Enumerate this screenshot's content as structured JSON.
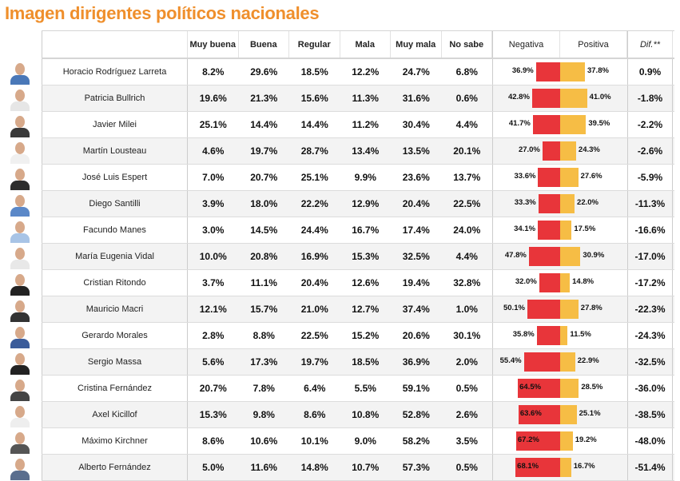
{
  "title": "Imagen dirigentes políticos nacionales",
  "columns": [
    "Muy buena",
    "Buena",
    "Regular",
    "Mala",
    "Muy mala",
    "No sabe",
    "Negativa",
    "Positiva",
    "Dif.**"
  ],
  "colors": {
    "negative": "#e8353a",
    "positive": "#f6bd45",
    "title": "#ef8f2c"
  },
  "rows": [
    {
      "name": "Horacio Rodríguez Larreta",
      "values": [
        "8.2%",
        "29.6%",
        "18.5%",
        "12.2%",
        "24.7%",
        "6.8%"
      ],
      "negativa": "36.9%",
      "positiva": "37.8%",
      "dif": "0.9%"
    },
    {
      "name": "Patricia Bullrich",
      "values": [
        "19.6%",
        "21.3%",
        "15.6%",
        "11.3%",
        "31.6%",
        "0.6%"
      ],
      "negativa": "42.8%",
      "positiva": "41.0%",
      "dif": "-1.8%"
    },
    {
      "name": "Javier Milei",
      "values": [
        "25.1%",
        "14.4%",
        "14.4%",
        "11.2%",
        "30.4%",
        "4.4%"
      ],
      "negativa": "41.7%",
      "positiva": "39.5%",
      "dif": "-2.2%"
    },
    {
      "name": "Martín Lousteau",
      "values": [
        "4.6%",
        "19.7%",
        "28.7%",
        "13.4%",
        "13.5%",
        "20.1%"
      ],
      "negativa": "27.0%",
      "positiva": "24.3%",
      "dif": "-2.6%"
    },
    {
      "name": "José Luis Espert",
      "values": [
        "7.0%",
        "20.7%",
        "25.1%",
        "9.9%",
        "23.6%",
        "13.7%"
      ],
      "negativa": "33.6%",
      "positiva": "27.6%",
      "dif": "-5.9%"
    },
    {
      "name": "Diego Santilli",
      "values": [
        "3.9%",
        "18.0%",
        "22.2%",
        "12.9%",
        "20.4%",
        "22.5%"
      ],
      "negativa": "33.3%",
      "positiva": "22.0%",
      "dif": "-11.3%"
    },
    {
      "name": "Facundo Manes",
      "values": [
        "3.0%",
        "14.5%",
        "24.4%",
        "16.7%",
        "17.4%",
        "24.0%"
      ],
      "negativa": "34.1%",
      "positiva": "17.5%",
      "dif": "-16.6%"
    },
    {
      "name": "María Eugenia Vidal",
      "values": [
        "10.0%",
        "20.8%",
        "16.9%",
        "15.3%",
        "32.5%",
        "4.4%"
      ],
      "negativa": "47.8%",
      "positiva": "30.9%",
      "dif": "-17.0%"
    },
    {
      "name": "Cristian Ritondo",
      "values": [
        "3.7%",
        "11.1%",
        "20.4%",
        "12.6%",
        "19.4%",
        "32.8%"
      ],
      "negativa": "32.0%",
      "positiva": "14.8%",
      "dif": "-17.2%"
    },
    {
      "name": "Mauricio Macri",
      "values": [
        "12.1%",
        "15.7%",
        "21.0%",
        "12.7%",
        "37.4%",
        "1.0%"
      ],
      "negativa": "50.1%",
      "positiva": "27.8%",
      "dif": "-22.3%"
    },
    {
      "name": "Gerardo Morales",
      "values": [
        "2.8%",
        "8.8%",
        "22.5%",
        "15.2%",
        "20.6%",
        "30.1%"
      ],
      "negativa": "35.8%",
      "positiva": "11.5%",
      "dif": "-24.3%"
    },
    {
      "name": "Sergio Massa",
      "values": [
        "5.6%",
        "17.3%",
        "19.7%",
        "18.5%",
        "36.9%",
        "2.0%"
      ],
      "negativa": "55.4%",
      "positiva": "22.9%",
      "dif": "-32.5%"
    },
    {
      "name": "Cristina Fernández",
      "values": [
        "20.7%",
        "7.8%",
        "6.4%",
        "5.5%",
        "59.1%",
        "0.5%"
      ],
      "negativa": "64.5%",
      "positiva": "28.5%",
      "dif": "-36.0%"
    },
    {
      "name": "Axel Kicillof",
      "values": [
        "15.3%",
        "9.8%",
        "8.6%",
        "10.8%",
        "52.8%",
        "2.6%"
      ],
      "negativa": "63.6%",
      "positiva": "25.1%",
      "dif": "-38.5%"
    },
    {
      "name": "Máximo Kirchner",
      "values": [
        "8.6%",
        "10.6%",
        "10.1%",
        "9.0%",
        "58.2%",
        "3.5%"
      ],
      "negativa": "67.2%",
      "positiva": "19.2%",
      "dif": "-48.0%"
    },
    {
      "name": "Alberto Fernández",
      "values": [
        "5.0%",
        "11.6%",
        "14.8%",
        "10.7%",
        "57.3%",
        "0.5%"
      ],
      "negativa": "68.1%",
      "positiva": "16.7%",
      "dif": "-51.4%"
    }
  ],
  "chart_data": {
    "type": "bar",
    "orientation": "horizontal-diverging",
    "categories": [
      "Horacio Rodríguez Larreta",
      "Patricia Bullrich",
      "Javier Milei",
      "Martín Lousteau",
      "José Luis Espert",
      "Diego Santilli",
      "Facundo Manes",
      "María Eugenia Vidal",
      "Cristian Ritondo",
      "Mauricio Macri",
      "Gerardo Morales",
      "Sergio Massa",
      "Cristina Fernández",
      "Axel Kicillof",
      "Máximo Kirchner",
      "Alberto Fernández"
    ],
    "series": [
      {
        "name": "Negativa",
        "values": [
          36.9,
          42.8,
          41.7,
          27.0,
          33.6,
          33.3,
          34.1,
          47.8,
          32.0,
          50.1,
          35.8,
          55.4,
          64.5,
          63.6,
          67.2,
          68.1
        ]
      },
      {
        "name": "Positiva",
        "values": [
          37.8,
          41.0,
          39.5,
          24.3,
          27.6,
          22.0,
          17.5,
          30.9,
          14.8,
          27.8,
          11.5,
          22.9,
          28.5,
          25.1,
          19.2,
          16.7
        ]
      }
    ],
    "data_labels": true,
    "grid": false
  }
}
